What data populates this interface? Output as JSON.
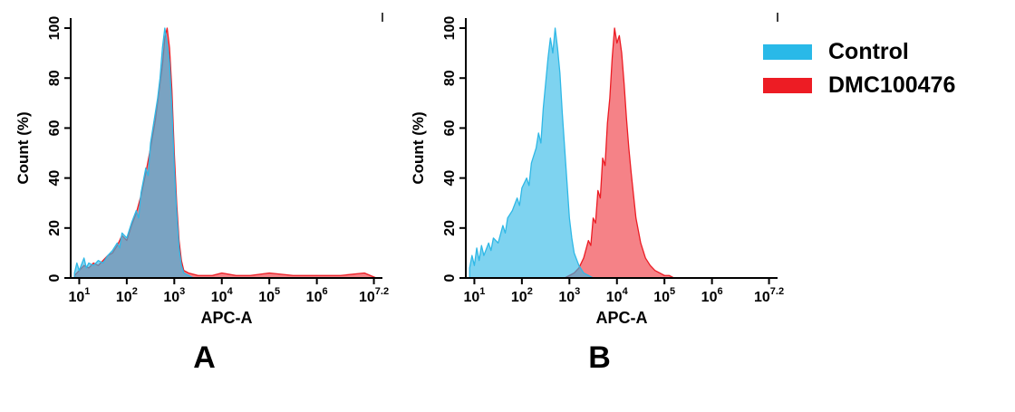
{
  "legend": {
    "items": [
      {
        "label": "Control",
        "color": "#29b9e8"
      },
      {
        "label": "DMC100476",
        "color": "#ed1c24"
      }
    ]
  },
  "axes": {
    "x_domain": [
      0.82,
      7.38
    ],
    "y_domain": [
      0,
      104
    ],
    "x_ticks": [
      {
        "log": 1,
        "base": "10",
        "exp": "1"
      },
      {
        "log": 2,
        "base": "10",
        "exp": "2"
      },
      {
        "log": 3,
        "base": "10",
        "exp": "3"
      },
      {
        "log": 4,
        "base": "10",
        "exp": "4"
      },
      {
        "log": 5,
        "base": "10",
        "exp": "5"
      },
      {
        "log": 6,
        "base": "10",
        "exp": "6"
      },
      {
        "log": 7.2,
        "base": "10",
        "exp": "7.2"
      }
    ],
    "y_ticks": [
      0,
      20,
      40,
      60,
      80,
      100
    ]
  },
  "chart_data": [
    {
      "type": "area",
      "panel_label": "A",
      "xlabel": "APC-A",
      "ylabel": "Count  (%)",
      "x_scale": "log10",
      "ylim": [
        0,
        100
      ],
      "series": [
        {
          "name": "Control",
          "color": "#2fb8e6",
          "points": [
            [
              0.9,
              2
            ],
            [
              0.95,
              6
            ],
            [
              1.0,
              3
            ],
            [
              1.1,
              8
            ],
            [
              1.15,
              4
            ],
            [
              1.2,
              6
            ],
            [
              1.3,
              5
            ],
            [
              1.4,
              7
            ],
            [
              1.5,
              6
            ],
            [
              1.6,
              9
            ],
            [
              1.7,
              11
            ],
            [
              1.8,
              14
            ],
            [
              1.85,
              12
            ],
            [
              1.9,
              18
            ],
            [
              2.0,
              16
            ],
            [
              2.1,
              22
            ],
            [
              2.2,
              27
            ],
            [
              2.25,
              24
            ],
            [
              2.3,
              34
            ],
            [
              2.4,
              44
            ],
            [
              2.45,
              41
            ],
            [
              2.5,
              54
            ],
            [
              2.6,
              66
            ],
            [
              2.65,
              72
            ],
            [
              2.7,
              80
            ],
            [
              2.75,
              92
            ],
            [
              2.8,
              100
            ],
            [
              2.85,
              94
            ],
            [
              2.9,
              86
            ],
            [
              2.95,
              68
            ],
            [
              3.0,
              44
            ],
            [
              3.05,
              26
            ],
            [
              3.1,
              12
            ],
            [
              3.15,
              5
            ],
            [
              3.2,
              2
            ],
            [
              3.3,
              1
            ],
            [
              3.4,
              0
            ]
          ]
        },
        {
          "name": "DMC100476",
          "color": "#ec1c24",
          "points": [
            [
              0.9,
              1
            ],
            [
              1.0,
              3
            ],
            [
              1.1,
              5
            ],
            [
              1.2,
              4
            ],
            [
              1.3,
              6
            ],
            [
              1.4,
              5
            ],
            [
              1.5,
              7
            ],
            [
              1.6,
              9
            ],
            [
              1.7,
              10
            ],
            [
              1.8,
              13
            ],
            [
              1.9,
              17
            ],
            [
              2.0,
              15
            ],
            [
              2.1,
              21
            ],
            [
              2.2,
              26
            ],
            [
              2.3,
              33
            ],
            [
              2.4,
              42
            ],
            [
              2.5,
              52
            ],
            [
              2.6,
              63
            ],
            [
              2.7,
              78
            ],
            [
              2.75,
              85
            ],
            [
              2.8,
              96
            ],
            [
              2.85,
              100
            ],
            [
              2.9,
              92
            ],
            [
              2.95,
              75
            ],
            [
              3.0,
              50
            ],
            [
              3.05,
              30
            ],
            [
              3.1,
              15
            ],
            [
              3.15,
              7
            ],
            [
              3.2,
              3
            ],
            [
              3.3,
              2
            ],
            [
              3.5,
              1
            ],
            [
              3.8,
              1
            ],
            [
              4.0,
              2
            ],
            [
              4.3,
              1
            ],
            [
              4.6,
              1
            ],
            [
              5.0,
              2
            ],
            [
              5.5,
              1
            ],
            [
              6.0,
              1
            ],
            [
              6.5,
              1
            ],
            [
              7.0,
              2
            ],
            [
              7.25,
              0
            ]
          ]
        }
      ]
    },
    {
      "type": "area",
      "panel_label": "B",
      "xlabel": "APC-A",
      "ylabel": "Count  (%)",
      "x_scale": "log10",
      "ylim": [
        0,
        100
      ],
      "series": [
        {
          "name": "Control",
          "color": "#2fb8e6",
          "points": [
            [
              0.9,
              4
            ],
            [
              0.95,
              9
            ],
            [
              1.0,
              5
            ],
            [
              1.05,
              12
            ],
            [
              1.1,
              7
            ],
            [
              1.15,
              13
            ],
            [
              1.2,
              9
            ],
            [
              1.3,
              14
            ],
            [
              1.35,
              11
            ],
            [
              1.4,
              16
            ],
            [
              1.5,
              14
            ],
            [
              1.6,
              21
            ],
            [
              1.65,
              18
            ],
            [
              1.7,
              24
            ],
            [
              1.8,
              27
            ],
            [
              1.9,
              32
            ],
            [
              1.95,
              29
            ],
            [
              2.0,
              36
            ],
            [
              2.1,
              40
            ],
            [
              2.15,
              37
            ],
            [
              2.2,
              46
            ],
            [
              2.3,
              52
            ],
            [
              2.35,
              58
            ],
            [
              2.4,
              54
            ],
            [
              2.45,
              68
            ],
            [
              2.5,
              78
            ],
            [
              2.55,
              88
            ],
            [
              2.6,
              96
            ],
            [
              2.65,
              90
            ],
            [
              2.7,
              100
            ],
            [
              2.75,
              92
            ],
            [
              2.8,
              82
            ],
            [
              2.85,
              66
            ],
            [
              2.9,
              52
            ],
            [
              2.95,
              38
            ],
            [
              3.0,
              24
            ],
            [
              3.05,
              16
            ],
            [
              3.1,
              10
            ],
            [
              3.2,
              5
            ],
            [
              3.3,
              2
            ],
            [
              3.4,
              1
            ],
            [
              3.5,
              0
            ]
          ]
        },
        {
          "name": "DMC100476",
          "color": "#ec1c24",
          "points": [
            [
              2.9,
              0
            ],
            [
              3.0,
              1
            ],
            [
              3.1,
              2
            ],
            [
              3.2,
              4
            ],
            [
              3.3,
              8
            ],
            [
              3.4,
              15
            ],
            [
              3.45,
              13
            ],
            [
              3.5,
              24
            ],
            [
              3.55,
              22
            ],
            [
              3.6,
              35
            ],
            [
              3.65,
              32
            ],
            [
              3.7,
              48
            ],
            [
              3.75,
              45
            ],
            [
              3.8,
              62
            ],
            [
              3.85,
              72
            ],
            [
              3.9,
              88
            ],
            [
              3.95,
              100
            ],
            [
              4.0,
              94
            ],
            [
              4.05,
              97
            ],
            [
              4.1,
              90
            ],
            [
              4.15,
              78
            ],
            [
              4.2,
              64
            ],
            [
              4.25,
              52
            ],
            [
              4.3,
              42
            ],
            [
              4.35,
              33
            ],
            [
              4.4,
              24
            ],
            [
              4.5,
              14
            ],
            [
              4.6,
              8
            ],
            [
              4.7,
              5
            ],
            [
              4.8,
              3
            ],
            [
              4.9,
              2
            ],
            [
              5.0,
              1
            ],
            [
              5.1,
              1
            ],
            [
              5.2,
              0
            ]
          ]
        }
      ]
    }
  ]
}
